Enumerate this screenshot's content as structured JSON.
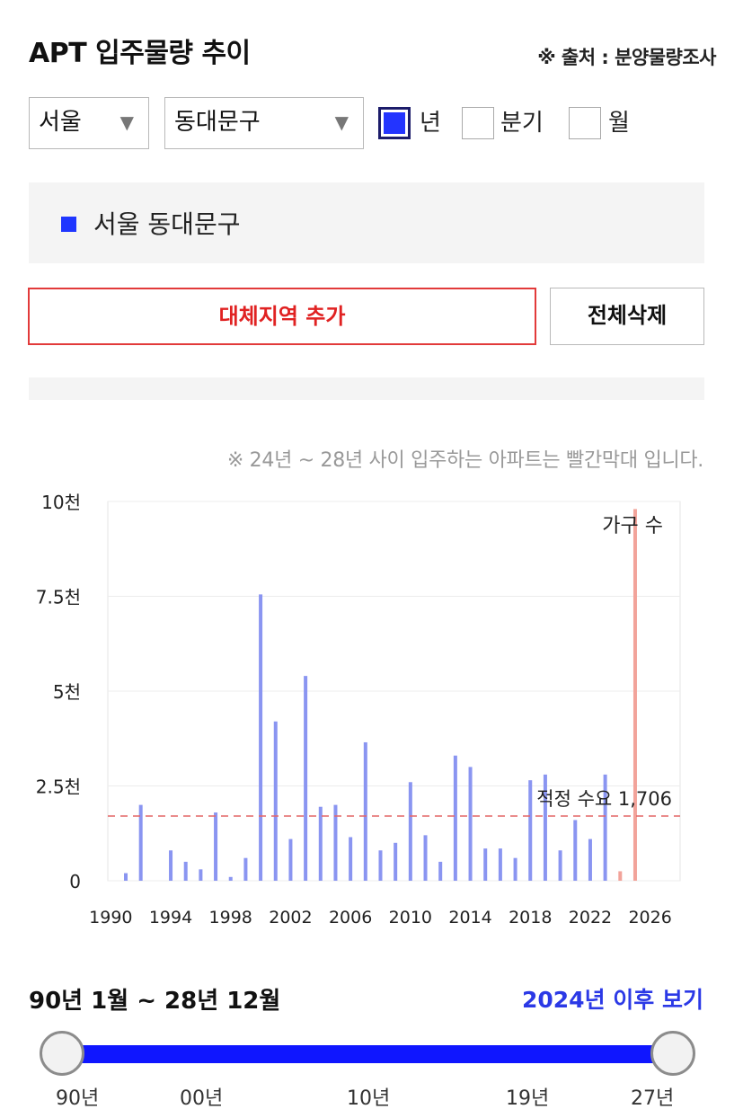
{
  "header": {
    "title": "APT 입주물량 추이",
    "source": "※ 출처 : 분양물량조사"
  },
  "filters": {
    "city": "서울",
    "district": "동대문구",
    "period_options": [
      {
        "label": "년",
        "checked": true
      },
      {
        "label": "분기",
        "checked": false
      },
      {
        "label": "월",
        "checked": false
      }
    ]
  },
  "legend": {
    "label": "서울 동대문구",
    "color": "#1f36ff"
  },
  "buttons": {
    "add": "대체지역 추가",
    "delete_all": "전체삭제"
  },
  "chart_note": "※ 24년 ~ 28년 사이 입주하는 아파트는 빨간막대 입니다.",
  "chart_data": {
    "type": "bar",
    "x": [
      1991,
      1992,
      1994,
      1995,
      1996,
      1997,
      1998,
      1999,
      2000,
      2001,
      2002,
      2003,
      2004,
      2005,
      2006,
      2007,
      2008,
      2009,
      2010,
      2011,
      2012,
      2013,
      2014,
      2015,
      2016,
      2017,
      2018,
      2019,
      2020,
      2021,
      2022,
      2023,
      2024,
      2025
    ],
    "values": [
      200,
      2000,
      800,
      500,
      300,
      1800,
      100,
      600,
      7550,
      4200,
      1100,
      5400,
      1950,
      2000,
      1150,
      3650,
      800,
      1000,
      2600,
      1200,
      500,
      3300,
      3000,
      850,
      850,
      600,
      2650,
      2800,
      800,
      1600,
      1100,
      2800,
      250,
      9800
    ],
    "highlight_range": [
      2024,
      2028
    ],
    "colors": {
      "normal": "#8a95f1",
      "highlight": "#f2a39a"
    },
    "y_ticks": [
      "0",
      "2.5천",
      "5천",
      "7.5천",
      "10천"
    ],
    "ylim": [
      0,
      10000
    ],
    "x_ticks": [
      "1990",
      "1994",
      "1998",
      "2002",
      "2006",
      "2010",
      "2014",
      "2018",
      "2022",
      "2026"
    ],
    "xlim": [
      1989.8,
      2028
    ],
    "reference_line": {
      "label": "적정 수요 1,706",
      "value": 1706,
      "color": "#e46565"
    },
    "annotation": "가구 수",
    "grid": true
  },
  "range": {
    "text": "90년 1월 ~ 28년 12월",
    "link": "2024년 이후 보기",
    "labels": [
      "90년",
      "00년",
      "10년",
      "19년",
      "27년"
    ]
  }
}
